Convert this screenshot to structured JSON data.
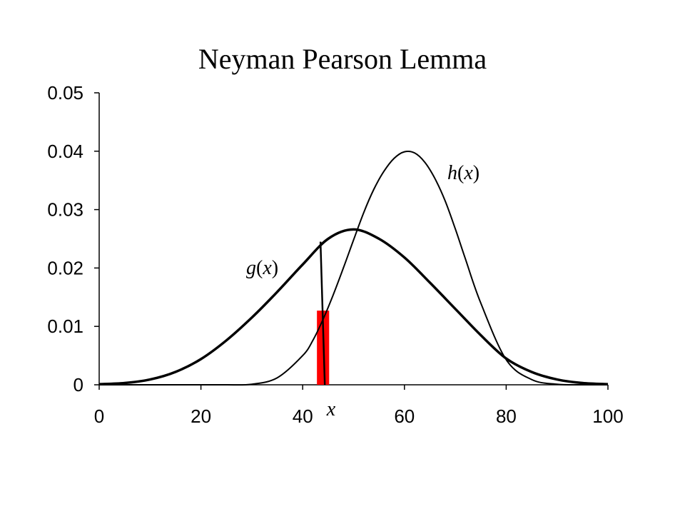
{
  "chart_data": {
    "type": "line",
    "title": "Neyman Pearson Lemma",
    "xlabel": "",
    "ylabel": "",
    "xlim": [
      0,
      100
    ],
    "ylim": [
      0,
      0.05
    ],
    "x_ticks": [
      "0",
      "20",
      "40",
      "60",
      "80",
      "100"
    ],
    "y_ticks": [
      "0",
      "0.01",
      "0.02",
      "0.03",
      "0.04",
      "0.05"
    ],
    "grid": false,
    "series": [
      {
        "name": "g",
        "label_fn": "g",
        "label_arg": "x",
        "color": "#000000",
        "x": [
          0,
          5,
          10,
          15,
          20,
          25,
          30,
          35,
          40,
          45,
          50,
          55,
          60,
          65,
          70,
          75,
          80,
          85,
          90,
          95,
          100
        ],
        "y": [
          0.0001,
          0.0003,
          0.0009,
          0.0022,
          0.0044,
          0.0076,
          0.0115,
          0.0159,
          0.0206,
          0.025,
          0.0266,
          0.025,
          0.0218,
          0.0175,
          0.013,
          0.0085,
          0.0045,
          0.0022,
          0.0009,
          0.0003,
          0.0001
        ]
      },
      {
        "name": "h",
        "label_fn": "h",
        "label_arg": "x",
        "color": "#000000",
        "x": [
          0,
          20,
          25,
          30,
          35,
          40,
          42,
          44,
          46,
          48,
          50,
          52,
          54,
          56,
          58,
          60,
          62,
          64,
          66,
          68,
          70,
          72,
          75,
          80,
          85,
          90,
          95,
          100
        ],
        "y": [
          0,
          0,
          0,
          0.0001,
          0.0012,
          0.005,
          0.0076,
          0.0112,
          0.0154,
          0.02,
          0.0248,
          0.0295,
          0.0335,
          0.0366,
          0.0388,
          0.0399,
          0.0397,
          0.0381,
          0.0353,
          0.0315,
          0.0267,
          0.0215,
          0.014,
          0.0043,
          0.0009,
          0.0001,
          0,
          0
        ]
      }
    ],
    "marker": {
      "x": 44,
      "label": "x",
      "band_halfwidth": 1.2,
      "band_top": 0.0127,
      "line_top": 0.0245,
      "band_color": "#ff0000"
    }
  }
}
